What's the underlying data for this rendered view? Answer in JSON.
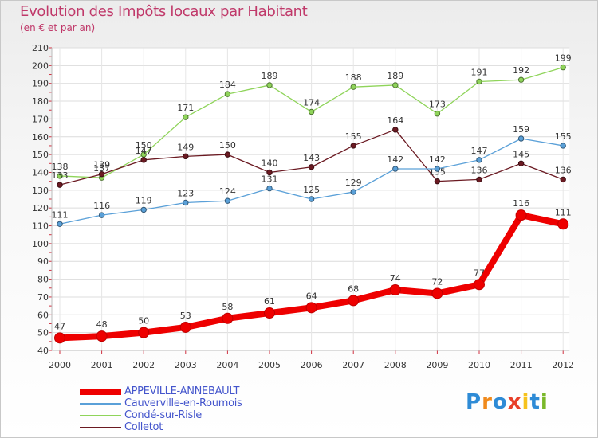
{
  "header": {
    "title": "Evolution des Impôts locaux par Habitant",
    "subtitle": "(en € et par an)"
  },
  "brand": {
    "letters": [
      "P",
      "r",
      "o",
      "x",
      "i",
      "t",
      "i"
    ],
    "colors": [
      "#2e8bd6",
      "#f08a1c",
      "#2e8bd6",
      "#e8402a",
      "#f6c21c",
      "#2e8bd6",
      "#7ab82a"
    ]
  },
  "chart_data": {
    "type": "line",
    "categories": [
      "2000",
      "2001",
      "2002",
      "2003",
      "2004",
      "2005",
      "2006",
      "2007",
      "2008",
      "2009",
      "2010",
      "2011",
      "2012"
    ],
    "ylim": [
      40,
      210
    ],
    "yticks": [
      40,
      50,
      60,
      70,
      80,
      90,
      100,
      110,
      120,
      130,
      140,
      150,
      160,
      170,
      180,
      190,
      200,
      210
    ],
    "grid": true,
    "legend_position": "bottom-left",
    "series": [
      {
        "name": "Condé-sur-Risle",
        "color": "#8fd45a",
        "values": [
          138,
          137,
          150,
          171,
          184,
          189,
          174,
          188,
          189,
          173,
          191,
          192,
          199
        ]
      },
      {
        "name": "Colletot",
        "color": "#6b1a22",
        "values": [
          133,
          139,
          147,
          149,
          150,
          140,
          143,
          155,
          164,
          135,
          136,
          145,
          136
        ]
      },
      {
        "name": "Cauverville-en-Roumois",
        "color": "#5aa0d8",
        "values": [
          111,
          116,
          119,
          123,
          124,
          131,
          125,
          129,
          142,
          142,
          147,
          159,
          155
        ]
      },
      {
        "name": "APPEVILLE-ANNEBAULT",
        "color": "#ee0000",
        "values": [
          47,
          48,
          50,
          53,
          58,
          61,
          64,
          68,
          74,
          72,
          77,
          116,
          111
        ]
      }
    ],
    "legend_order": [
      "APPEVILLE-ANNEBAULT",
      "Cauverville-en-Roumois",
      "Condé-sur-Risle",
      "Colletot"
    ]
  }
}
